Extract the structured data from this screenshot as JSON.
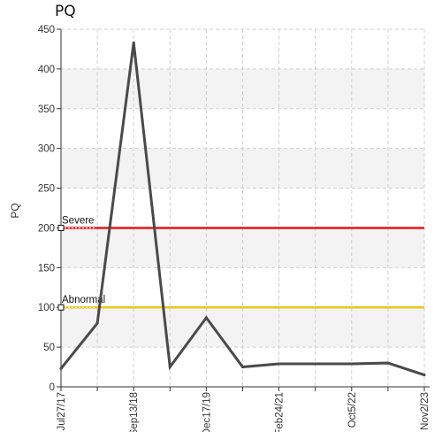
{
  "chart_data": {
    "type": "line",
    "title": "PQ",
    "ylabel": "PQ",
    "xlabel": "",
    "ylim": [
      0,
      450
    ],
    "yticks": [
      0,
      50,
      100,
      150,
      200,
      250,
      300,
      350,
      400,
      450
    ],
    "x_tick_labels": [
      {
        "label": "Jul27/17",
        "index": 0
      },
      {
        "label": "Sep13/18",
        "index": 2
      },
      {
        "label": "Dec17/19",
        "index": 4
      },
      {
        "label": "Feb24/21",
        "index": 6
      },
      {
        "label": "Oct5/22",
        "index": 8
      },
      {
        "label": "Nov2/23",
        "index": 10
      }
    ],
    "series": [
      {
        "values": [
          23,
          80,
          433,
          25,
          87,
          25,
          29,
          29,
          29,
          30,
          15
        ]
      }
    ],
    "reference_lines": [
      {
        "label": "Severe",
        "value": 200,
        "color": "#e8151b"
      },
      {
        "label": "Abnormal",
        "value": 100,
        "color": "#f0c419"
      }
    ],
    "line_color": "#4a4a4a",
    "grid": true,
    "banded_background": true
  }
}
